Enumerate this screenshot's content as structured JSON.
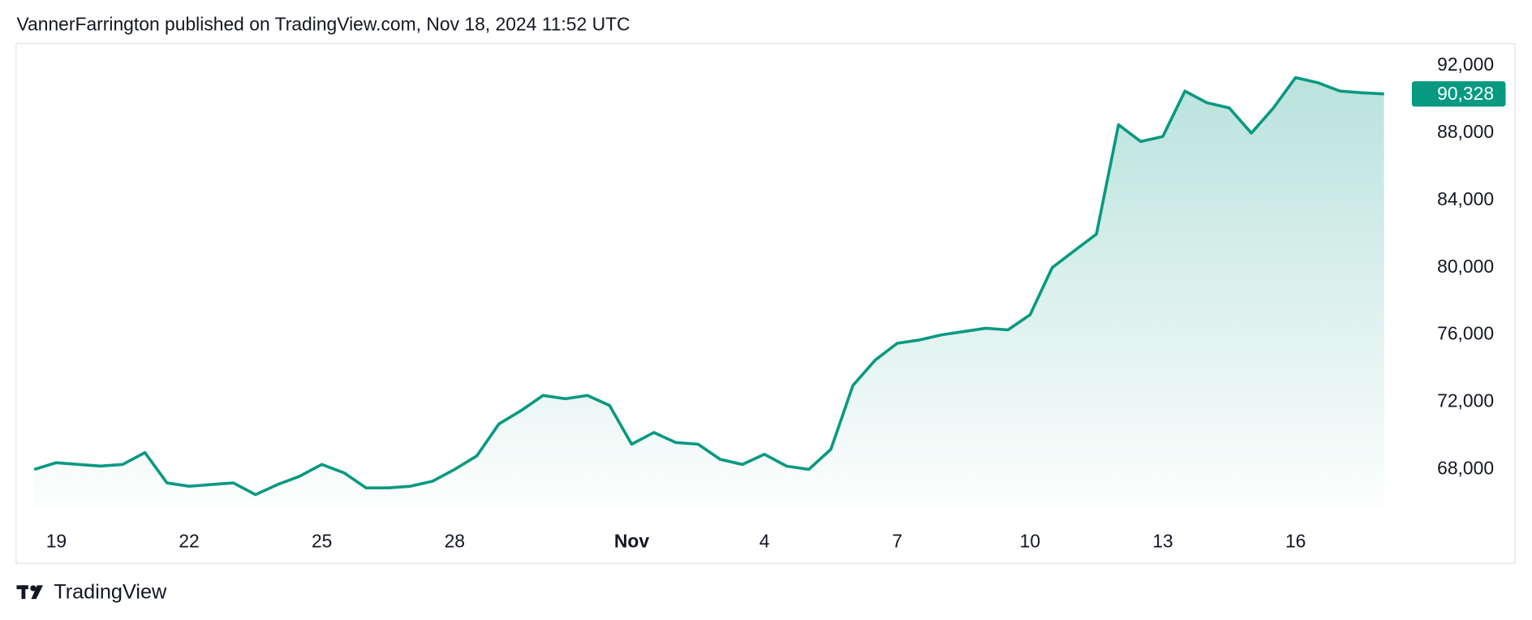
{
  "header": "VannerFarrington published on TradingView.com, Nov 18, 2024 11:52 UTC",
  "footer": "TradingView",
  "chart_data": {
    "type": "line",
    "categories": [
      null,
      "19",
      null,
      null,
      null,
      null,
      null,
      "22",
      null,
      null,
      null,
      null,
      null,
      "25",
      null,
      null,
      null,
      null,
      null,
      "28",
      null,
      null,
      null,
      null,
      null,
      null,
      null,
      "Nov",
      null,
      null,
      null,
      null,
      null,
      "4",
      null,
      null,
      null,
      null,
      null,
      "7",
      null,
      null,
      null,
      null,
      null,
      "10",
      null,
      null,
      null,
      null,
      null,
      "13",
      null,
      null,
      null,
      null,
      null,
      "16",
      null,
      null,
      null,
      null
    ],
    "series": [
      {
        "name": null,
        "color": "#089981",
        "values": [
          68000,
          68400,
          68300,
          68200,
          68300,
          69000,
          67200,
          67000,
          67100,
          67200,
          66500,
          67100,
          67600,
          68300,
          67800,
          66900,
          66900,
          67000,
          67300,
          68000,
          68800,
          70700,
          71500,
          72400,
          72200,
          72400,
          71800,
          69500,
          70200,
          69600,
          69500,
          68600,
          68300,
          68900,
          68200,
          68000,
          69200,
          73000,
          74500,
          75500,
          75700,
          76000,
          76200,
          76400,
          76300,
          77200,
          80000,
          81000,
          82000,
          88500,
          87500,
          87800,
          90500,
          89800,
          89500,
          88000,
          89500,
          91300,
          91000,
          90500,
          90400,
          90328
        ],
        "value_labels": [
          null,
          null,
          null,
          null,
          null,
          null,
          null,
          null,
          null,
          null,
          null,
          null,
          null,
          null,
          null,
          null,
          null,
          null,
          null,
          null,
          null,
          null,
          null,
          null,
          null,
          null,
          null,
          null,
          null,
          null,
          null,
          null,
          null,
          null,
          null,
          null,
          null,
          null,
          null,
          null,
          null,
          null,
          null,
          null,
          null,
          null,
          null,
          null,
          null,
          null,
          null,
          null,
          null,
          null,
          null,
          null,
          null,
          null,
          null,
          null,
          null,
          "90,328"
        ]
      }
    ],
    "ylim": [
      65700,
      93300
    ],
    "yticks": [
      {
        "value": 68000,
        "label": "68,000"
      },
      {
        "value": 72000,
        "label": "72,000"
      },
      {
        "value": 76000,
        "label": "76,000"
      },
      {
        "value": 80000,
        "label": "80,000"
      },
      {
        "value": 84000,
        "label": "84,000"
      },
      {
        "value": 88000,
        "label": "88,000"
      },
      {
        "value": 92000,
        "label": "92,000"
      }
    ],
    "grid": false
  }
}
